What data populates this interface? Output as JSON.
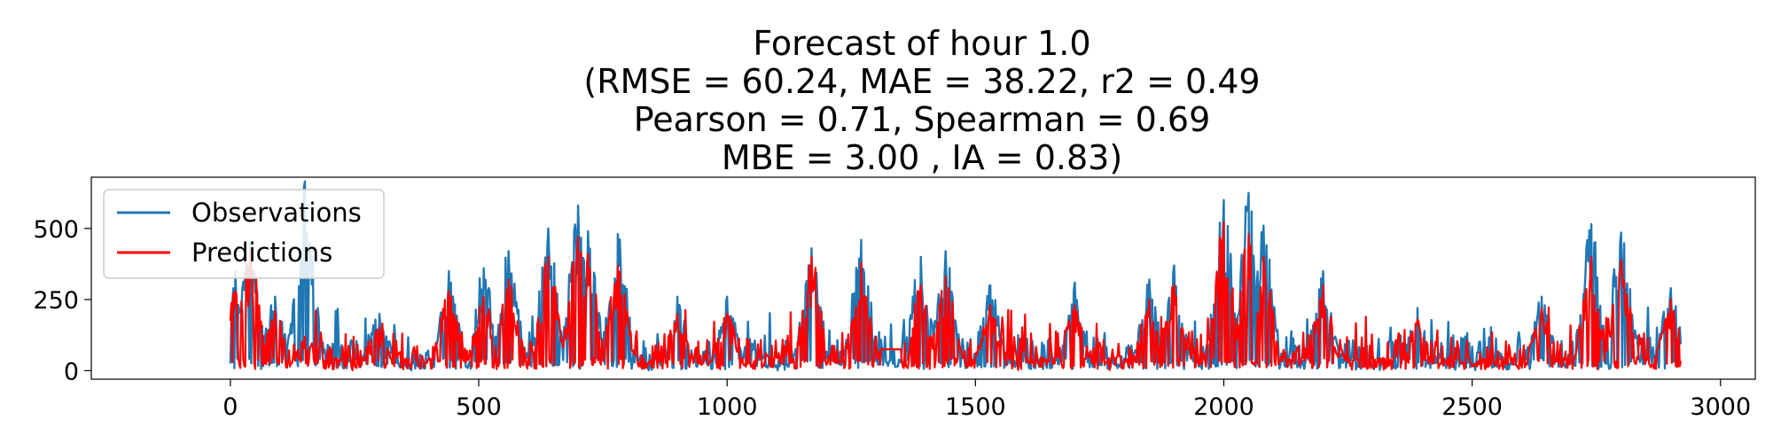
{
  "chart_data": {
    "type": "line",
    "title_lines": [
      "Forecast of hour 1.0",
      "(RMSE = 60.24, MAE = 38.22, r2 = 0.49",
      "Pearson = 0.71, Spearman = 0.69",
      "MBE = 3.00 , IA = 0.83)"
    ],
    "xlabel": "",
    "ylabel": "",
    "xlim": [
      -280,
      3070
    ],
    "ylim": [
      -30,
      680
    ],
    "x_ticks": [
      0,
      500,
      1000,
      1500,
      2000,
      2500,
      3000
    ],
    "y_ticks": [
      0,
      250,
      500
    ],
    "grid": false,
    "legend_position": "top-left",
    "series": [
      {
        "name": "Observations",
        "color": "#1f77b4",
        "x_start": 0,
        "x_end": 2920,
        "peaks": [
          [
            10,
            350
          ],
          [
            40,
            450
          ],
          [
            90,
            260
          ],
          [
            150,
            665
          ],
          [
            300,
            200
          ],
          [
            440,
            350
          ],
          [
            510,
            360
          ],
          [
            560,
            420
          ],
          [
            640,
            500
          ],
          [
            700,
            580
          ],
          [
            720,
            490
          ],
          [
            780,
            480
          ],
          [
            900,
            260
          ],
          [
            1000,
            260
          ],
          [
            1170,
            430
          ],
          [
            1270,
            460
          ],
          [
            1390,
            400
          ],
          [
            1440,
            420
          ],
          [
            1530,
            300
          ],
          [
            1700,
            310
          ],
          [
            1850,
            320
          ],
          [
            1900,
            370
          ],
          [
            2000,
            600
          ],
          [
            2050,
            625
          ],
          [
            2080,
            510
          ],
          [
            2200,
            350
          ],
          [
            2390,
            220
          ],
          [
            2640,
            260
          ],
          [
            2740,
            515
          ],
          [
            2800,
            485
          ],
          [
            2900,
            290
          ]
        ]
      },
      {
        "name": "Predictions",
        "color": "#ff0000",
        "x_start": 0,
        "x_end": 2920,
        "peaks": [
          [
            10,
            280
          ],
          [
            40,
            420
          ],
          [
            90,
            210
          ],
          [
            150,
            120
          ],
          [
            300,
            150
          ],
          [
            440,
            280
          ],
          [
            510,
            260
          ],
          [
            560,
            320
          ],
          [
            640,
            400
          ],
          [
            700,
            470
          ],
          [
            720,
            410
          ],
          [
            780,
            370
          ],
          [
            900,
            200
          ],
          [
            1000,
            200
          ],
          [
            1170,
            400
          ],
          [
            1270,
            380
          ],
          [
            1390,
            300
          ],
          [
            1440,
            330
          ],
          [
            1530,
            230
          ],
          [
            1700,
            230
          ],
          [
            1850,
            250
          ],
          [
            1900,
            300
          ],
          [
            2000,
            520
          ],
          [
            2050,
            480
          ],
          [
            2080,
            400
          ],
          [
            2200,
            300
          ],
          [
            2390,
            180
          ],
          [
            2640,
            220
          ],
          [
            2740,
            400
          ],
          [
            2800,
            390
          ],
          [
            2900,
            250
          ]
        ],
        "flat_segments": [
          [
            1310,
            1350,
            75
          ]
        ]
      }
    ]
  }
}
